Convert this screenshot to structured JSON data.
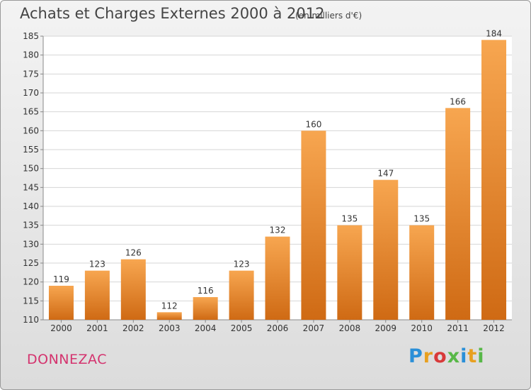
{
  "chart_data": {
    "type": "bar",
    "title": "Achats et Charges Externes 2000 à 2012",
    "subtitle": "(en milliers d'€)",
    "categories": [
      "2000",
      "2001",
      "2002",
      "2003",
      "2004",
      "2005",
      "2006",
      "2007",
      "2008",
      "2009",
      "2010",
      "2011",
      "2012"
    ],
    "values": [
      119,
      123,
      126,
      112,
      116,
      123,
      132,
      160,
      135,
      147,
      135,
      166,
      184
    ],
    "ylim": [
      110,
      185
    ],
    "yticks": [
      110,
      115,
      120,
      125,
      130,
      135,
      140,
      145,
      150,
      155,
      160,
      165,
      170,
      175,
      180,
      185
    ],
    "grid": true,
    "bar_color": "#f0903a"
  },
  "footer": {
    "commune": "DONNEZAC",
    "logo_letters": [
      {
        "ch": "P",
        "color": "#2a8fd8"
      },
      {
        "ch": "r",
        "color": "#e8a020"
      },
      {
        "ch": "o",
        "color": "#d83a3a"
      },
      {
        "ch": "x",
        "color": "#58b848"
      },
      {
        "ch": "i",
        "color": "#2a8fd8"
      },
      {
        "ch": "t",
        "color": "#e8a020"
      },
      {
        "ch": "i",
        "color": "#58b848"
      }
    ]
  }
}
